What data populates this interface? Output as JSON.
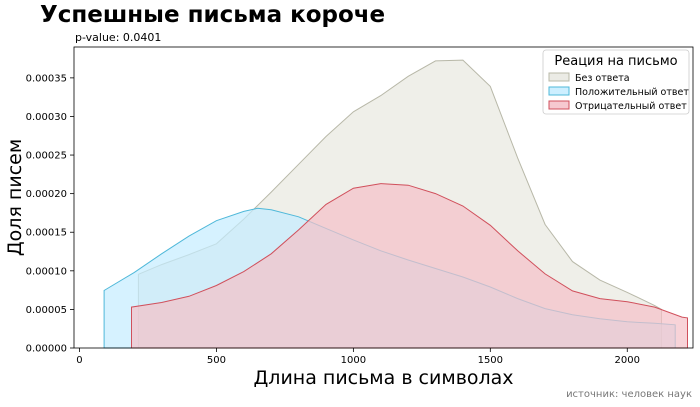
{
  "header": {
    "title": "Успешные письма короче",
    "subtitle": "p-value: 0.0401"
  },
  "footer": {
    "source": "источник: человек наук"
  },
  "chart_data": {
    "type": "area",
    "xlabel": "Длина письма в символах",
    "ylabel": "Доля писем",
    "xlim": [
      -20,
      2240
    ],
    "ylim": [
      0,
      0.00039
    ],
    "x_ticks": [
      0,
      500,
      1000,
      1500,
      2000
    ],
    "x_tick_labels": [
      "0",
      "500",
      "1000",
      "1500",
      "2000"
    ],
    "y_ticks": [
      0,
      5e-05,
      0.0001,
      0.00015,
      0.0002,
      0.00025,
      0.0003,
      0.00035
    ],
    "y_tick_labels": [
      "0.00000",
      "0.00005",
      "0.00010",
      "0.00015",
      "0.00020",
      "0.00025",
      "0.00030",
      "0.00035"
    ],
    "grid": false,
    "legend": {
      "title": "Реация на письмо",
      "position": "top-right"
    },
    "series": [
      {
        "name": "Без ответа",
        "fill": "#e8e8e0",
        "stroke": "#b8b8a8",
        "points": [
          [
            215,
            0.0
          ],
          [
            215,
            9.55e-05
          ],
          [
            300,
            0.000108
          ],
          [
            400,
            0.000121
          ],
          [
            500,
            0.000135
          ],
          [
            600,
            0.000167
          ],
          [
            700,
            0.000202
          ],
          [
            800,
            0.000238
          ],
          [
            900,
            0.000274
          ],
          [
            1000,
            0.000306
          ],
          [
            1100,
            0.000327
          ],
          [
            1200,
            0.000352
          ],
          [
            1300,
            0.000372
          ],
          [
            1400,
            0.000373
          ],
          [
            1500,
            0.000339
          ],
          [
            1600,
            0.000246
          ],
          [
            1700,
            0.00016
          ],
          [
            1800,
            0.000112
          ],
          [
            1900,
            8.8e-05
          ],
          [
            2000,
            7.2e-05
          ],
          [
            2100,
            5.5e-05
          ],
          [
            2125,
            5e-05
          ],
          [
            2125,
            0.0
          ]
        ]
      },
      {
        "name": "Положительный ответ",
        "fill": "#c4ecff",
        "stroke": "#4fb8d9",
        "points": [
          [
            90,
            0.0
          ],
          [
            90,
            7.45e-05
          ],
          [
            200,
            9.8e-05
          ],
          [
            300,
            0.000122
          ],
          [
            400,
            0.000145
          ],
          [
            500,
            0.000165
          ],
          [
            600,
            0.000177
          ],
          [
            650,
            0.000181
          ],
          [
            700,
            0.000179
          ],
          [
            800,
            0.00017
          ],
          [
            900,
            0.000155
          ],
          [
            1000,
            0.00014
          ],
          [
            1100,
            0.000126
          ],
          [
            1200,
            0.000114
          ],
          [
            1300,
            0.000103
          ],
          [
            1400,
            9.2e-05
          ],
          [
            1500,
            7.9e-05
          ],
          [
            1600,
            6.4e-05
          ],
          [
            1700,
            5.1e-05
          ],
          [
            1800,
            4.3e-05
          ],
          [
            1900,
            3.8e-05
          ],
          [
            2000,
            3.4e-05
          ],
          [
            2100,
            3.2e-05
          ],
          [
            2175,
            3e-05
          ],
          [
            2175,
            0.0
          ]
        ]
      },
      {
        "name": "Отрицательный ответ",
        "fill": "#f5c0c8",
        "stroke": "#d0505c",
        "points": [
          [
            190,
            0.0
          ],
          [
            190,
            5.3e-05
          ],
          [
            300,
            5.9e-05
          ],
          [
            400,
            6.7e-05
          ],
          [
            500,
            8.1e-05
          ],
          [
            600,
            9.9e-05
          ],
          [
            700,
            0.000122
          ],
          [
            800,
            0.000153
          ],
          [
            900,
            0.000186
          ],
          [
            1000,
            0.000207
          ],
          [
            1100,
            0.000213
          ],
          [
            1200,
            0.000211
          ],
          [
            1300,
            0.0002
          ],
          [
            1400,
            0.000184
          ],
          [
            1500,
            0.000159
          ],
          [
            1600,
            0.000126
          ],
          [
            1700,
            9.6e-05
          ],
          [
            1800,
            7.4e-05
          ],
          [
            1900,
            6.4e-05
          ],
          [
            2000,
            6e-05
          ],
          [
            2100,
            5.3e-05
          ],
          [
            2200,
            4e-05
          ],
          [
            2220,
            3.9e-05
          ],
          [
            2220,
            0.0
          ]
        ]
      }
    ]
  }
}
